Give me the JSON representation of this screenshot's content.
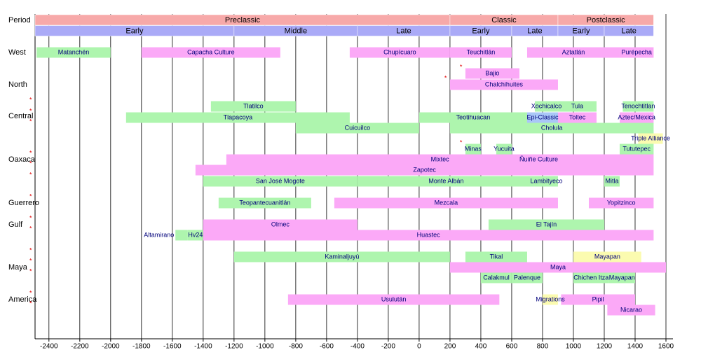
{
  "chart_data": {
    "type": "timeline",
    "period_label": "Period",
    "xlim": [
      -2490,
      1600
    ],
    "xticks": [
      -2400,
      -2200,
      -2000,
      -1800,
      -1600,
      -1400,
      -1200,
      -1000,
      -800,
      -600,
      -400,
      -200,
      0,
      200,
      400,
      600,
      800,
      1000,
      1200,
      1400,
      1600
    ],
    "grid": true,
    "palette": {
      "green": "#aef5ae",
      "pink": "#fba9f7",
      "yellow": "#fbfbb0",
      "blue": "#a9c7f7",
      "period": "#f7a9a9",
      "subperiod": "#aaaaf7"
    },
    "periods": [
      {
        "name": "Preclassic",
        "start": -2490,
        "end": 200
      },
      {
        "name": "Classic",
        "start": 200,
        "end": 900
      },
      {
        "name": "Postclassic",
        "start": 900,
        "end": 1520
      }
    ],
    "subperiods": [
      {
        "name": "Early",
        "start": -2490,
        "end": -1200
      },
      {
        "name": "Middle",
        "start": -1200,
        "end": -400
      },
      {
        "name": "Late",
        "start": -400,
        "end": 200
      },
      {
        "name": "Early",
        "start": 200,
        "end": 600
      },
      {
        "name": "Late",
        "start": 600,
        "end": 900
      },
      {
        "name": "Early",
        "start": 900,
        "end": 1200
      },
      {
        "name": "Late",
        "start": 1200,
        "end": 1520
      }
    ],
    "regions": [
      {
        "name": "West",
        "lanes": [
          {
            "bars": [
              {
                "name": "Matanchén",
                "start": -2480,
                "end": -2000,
                "color": "green"
              },
              {
                "name": "Capacha Culture",
                "start": -1800,
                "end": -900,
                "color": "pink"
              },
              {
                "name": "Chupícuaro",
                "start": -450,
                "end": 200,
                "color": "pink"
              },
              {
                "name": "Teuchitlán",
                "start": 200,
                "end": 600,
                "color": "pink"
              },
              {
                "name": "Aztatlán",
                "start": 700,
                "end": 1300,
                "color": "pink"
              },
              {
                "name": "Purépecha",
                "start": 1300,
                "end": 1520,
                "color": "pink"
              }
            ]
          }
        ]
      },
      {
        "name": "North",
        "lanes": [
          {
            "bars": [
              {
                "name": "Bajio",
                "start": 300,
                "end": 650,
                "color": "pink",
                "flag": "*"
              }
            ]
          },
          {
            "bars": [
              {
                "name": "Chalchihuites",
                "start": 200,
                "end": 900,
                "color": "pink",
                "flag": "*"
              }
            ]
          }
        ]
      },
      {
        "name": "Central",
        "lanes": [
          {
            "flag": "*",
            "bars": [
              {
                "name": "Tlatilco",
                "start": -1350,
                "end": -800,
                "color": "green"
              },
              {
                "name": "Xochicalco",
                "start": 750,
                "end": 900,
                "color": "green"
              },
              {
                "name": "Tula",
                "start": 900,
                "end": 1150,
                "color": "green"
              },
              {
                "name": "Tenochtitlan",
                "start": 1320,
                "end": 1520,
                "color": "green"
              }
            ]
          },
          {
            "flag": "*",
            "bars": [
              {
                "name": "Tlapacoya",
                "start": -1900,
                "end": -450,
                "color": "green"
              },
              {
                "name": "Teotihuacan",
                "start": 0,
                "end": 700,
                "color": "green"
              },
              {
                "name": "Epi-Classic",
                "start": 700,
                "end": 900,
                "color": "blue"
              },
              {
                "name": "Toltec",
                "start": 900,
                "end": 1150,
                "color": "pink"
              },
              {
                "name": "Aztec/Mexica",
                "start": 1300,
                "end": 1520,
                "color": "pink"
              }
            ]
          },
          {
            "flag": "*",
            "bars": [
              {
                "name": "Cuicuilco",
                "start": -800,
                "end": 0,
                "color": "green"
              },
              {
                "name": "Cholula",
                "start": 200,
                "end": 1520,
                "color": "green"
              }
            ]
          }
        ]
      },
      {
        "name": "Oaxaca",
        "lanes": [
          {
            "bars": [
              {
                "name": "Triple Alliance",
                "start": 1420,
                "end": 1580,
                "color": "yellow"
              }
            ]
          },
          {
            "bars": [
              {
                "name": "Minas",
                "start": 300,
                "end": 400,
                "color": "green",
                "flag": "*"
              },
              {
                "name": "Yucuita",
                "start": 500,
                "end": 600,
                "color": "green"
              },
              {
                "name": "Tututepec",
                "start": 1300,
                "end": 1520,
                "color": "green"
              }
            ]
          },
          {
            "flag": "*",
            "bars": [
              {
                "name": "Mixtec",
                "start": -1250,
                "end": 1520,
                "color": "pink"
              },
              {
                "name": "Ñuiñe Culture",
                "start": 600,
                "end": 950,
                "color": "pink"
              }
            ]
          },
          {
            "flag": "*",
            "bars": [
              {
                "name": "Zapotec",
                "start": -1450,
                "end": 1520,
                "color": "pink"
              }
            ]
          },
          {
            "flag": "*",
            "bars": [
              {
                "name": "San José Mogote",
                "start": -1400,
                "end": -400,
                "color": "green"
              },
              {
                "name": "Monte Albán",
                "start": -400,
                "end": 750,
                "color": "green"
              },
              {
                "name": "Lambityeco",
                "start": 750,
                "end": 900,
                "color": "green"
              },
              {
                "name": "Mitla",
                "start": 1200,
                "end": 1300,
                "color": "green"
              }
            ]
          }
        ]
      },
      {
        "name": "Guerrero",
        "lanes": [
          {
            "flag": "*",
            "bars": [
              {
                "name": "Teopantecuanitlán",
                "start": -1300,
                "end": -700,
                "color": "green"
              },
              {
                "name": "Mezcala",
                "start": -550,
                "end": 900,
                "color": "pink"
              },
              {
                "name": "Yopitzinco",
                "start": 1100,
                "end": 1520,
                "color": "pink"
              }
            ]
          }
        ]
      },
      {
        "name": "Gulf",
        "lanes": [
          {
            "flag": "*",
            "bars": [
              {
                "name": "Olmec",
                "start": -1400,
                "end": -400,
                "color": "pink"
              },
              {
                "name": "El Tajín",
                "start": 450,
                "end": 1200,
                "color": "green"
              }
            ]
          },
          {
            "flag": "*",
            "bars": [
              {
                "name": "Altamirano",
                "start": -1580,
                "end": -1500,
                "color": "green",
                "label_side": "left"
              },
              {
                "name": "Hv24",
                "start": -1500,
                "end": -1400,
                "color": "green"
              },
              {
                "name": "Huastec",
                "start": -1400,
                "end": 1520,
                "color": "pink"
              }
            ]
          }
        ]
      },
      {
        "name": "Maya",
        "lanes": [
          {
            "flag": "*",
            "bars": [
              {
                "name": "Kaminaljuyú",
                "start": -1200,
                "end": 200,
                "color": "green"
              },
              {
                "name": "Tikal",
                "start": 300,
                "end": 700,
                "color": "green"
              },
              {
                "name": "Mayapan",
                "start": 1000,
                "end": 1440,
                "color": "yellow"
              }
            ]
          },
          {
            "flag": "*",
            "bars": [
              {
                "name": "Maya",
                "start": 200,
                "end": 1600,
                "color": "pink"
              }
            ]
          },
          {
            "flag": "*",
            "bars": [
              {
                "name": "Calakmul",
                "start": 400,
                "end": 600,
                "color": "green"
              },
              {
                "name": "Palenque",
                "start": 600,
                "end": 800,
                "color": "green"
              },
              {
                "name": "Chichen Itza",
                "start": 1000,
                "end": 1230,
                "color": "green"
              },
              {
                "name": "Mayapan",
                "start": 1230,
                "end": 1400,
                "color": "green"
              }
            ]
          }
        ]
      },
      {
        "name": "America",
        "lanes": [
          {
            "flag": "*",
            "bars": [
              {
                "name": "Usulután",
                "start": -850,
                "end": 520,
                "color": "pink"
              },
              {
                "name": "Migrations",
                "start": 800,
                "end": 900,
                "color": "yellow"
              },
              {
                "name": "Pipil",
                "start": 920,
                "end": 1400,
                "color": "pink"
              }
            ]
          },
          {
            "flag": "*",
            "bars": [
              {
                "name": "Nicarao",
                "start": 1220,
                "end": 1530,
                "color": "pink"
              }
            ]
          }
        ]
      }
    ]
  }
}
